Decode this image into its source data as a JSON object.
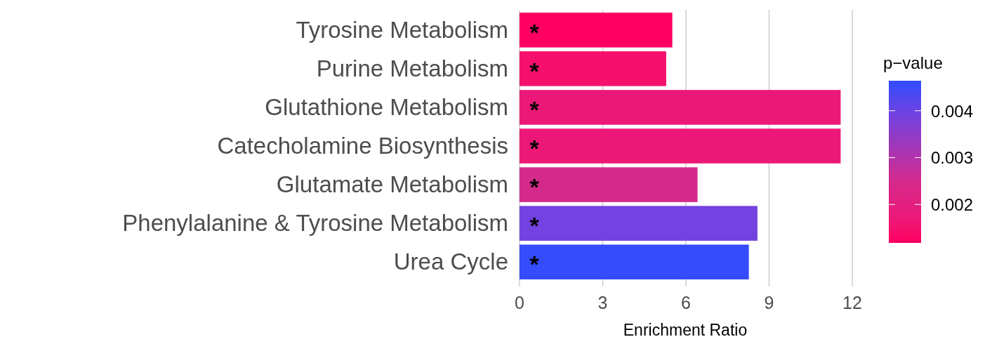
{
  "chart_data": {
    "type": "bar",
    "orientation": "horizontal",
    "categories": [
      "Tyrosine Metabolism",
      "Purine Metabolism",
      "Glutathione Metabolism",
      "Catecholamine Biosynthesis",
      "Glutamate Metabolism",
      "Phenylalanine & Tyrosine Metabolism",
      "Urea Cycle"
    ],
    "values": [
      5.51,
      5.29,
      11.58,
      11.58,
      6.42,
      8.58,
      8.27
    ],
    "colors": [
      "#ff0062",
      "#f5106e",
      "#ec1878",
      "#ec1878",
      "#d42a8c",
      "#7442e0",
      "#344cfc"
    ],
    "cvalues": [
      0.0012,
      0.0015,
      0.0017,
      0.0017,
      0.0025,
      0.0039,
      0.0046
    ],
    "clim": [
      0.00118,
      0.00464
    ],
    "cticks": [
      0.002,
      0.003,
      0.004
    ],
    "clabel": "p−value",
    "xlabel": "Enrichment Ratio",
    "xlim": [
      0,
      12
    ],
    "xticks": [
      0,
      3,
      6,
      9,
      12
    ],
    "grid": "x",
    "annotations": [
      "*",
      "*",
      "*",
      "*",
      "*",
      "*",
      "*"
    ]
  }
}
